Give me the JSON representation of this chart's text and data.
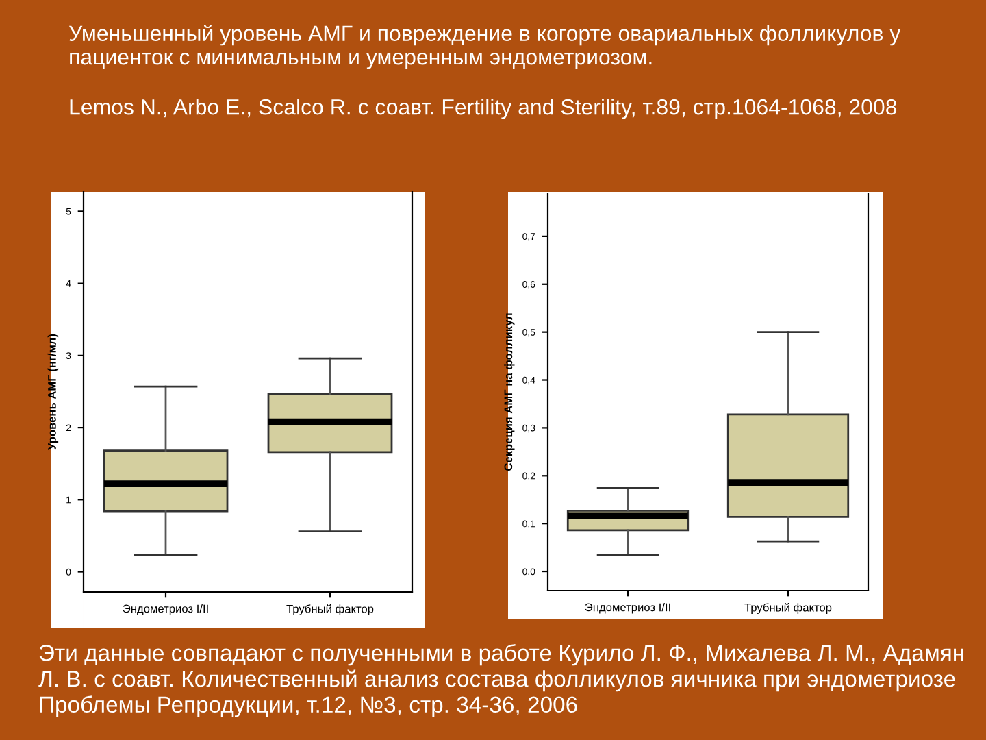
{
  "chart_data": [
    {
      "type": "box",
      "title": "Уменьшенный уровень АМГ и повреждение в когорте овариальных фолликулов у пациенток с минимальным и умеренным эндометриозом.",
      "subtitle": "Lemos N., Arbo E., Scalco R. с соавт. Fertility and Sterility, т.89, стр.1064-1068, 2008",
      "ylabel": "Уровень АМГ (нг/мл)",
      "categories": [
        "Эндометриоз I/II",
        "Трубный фактор"
      ],
      "color": "#d4cf9f",
      "ylim": [
        -0.28,
        5.27
      ],
      "yticks": [
        0,
        1,
        2,
        3,
        4,
        5
      ],
      "grid": false,
      "boxes": [
        {
          "low": 0.23,
          "q1": 0.84,
          "median": 1.22,
          "q3": 1.68,
          "high": 2.57
        },
        {
          "low": 0.56,
          "q1": 1.66,
          "median": 2.08,
          "q3": 2.47,
          "high": 2.96
        }
      ]
    },
    {
      "type": "box",
      "ylabel": "Секреция АМГ на фолликул",
      "categories": [
        "Эндометриоз I/II",
        "Трубный фактор"
      ],
      "color": "#d4cf9f",
      "ylim": [
        -0.04,
        0.79
      ],
      "yticks": [
        {
          "value": 0,
          "label": "0,0"
        },
        {
          "value": 0.1,
          "label": "0,1"
        },
        {
          "value": 0.2,
          "label": "0,2"
        },
        {
          "value": 0.3,
          "label": "0,3"
        },
        {
          "value": 0.4,
          "label": "0,4"
        },
        {
          "value": 0.5,
          "label": "0,5"
        },
        {
          "value": 0.6,
          "label": "0,6"
        },
        {
          "value": 0.7,
          "label": "0,7"
        }
      ],
      "grid": false,
      "boxes": [
        {
          "low": 0.034,
          "q1": 0.086,
          "median": 0.117,
          "q3": 0.127,
          "high": 0.174
        },
        {
          "low": 0.063,
          "q1": 0.114,
          "median": 0.186,
          "q3": 0.328,
          "high": 0.5
        }
      ],
      "annotations": [
        "Эти данные совпадают с полученными в работе Курило Л. Ф., Михалева Л. М., Адамян Л. В. с соавт. Количественный анализ состава фолликулов яичника при эндометриозе Проблемы Репродукции, т.12, №3, стр. 34-36, 2006"
      ]
    }
  ]
}
